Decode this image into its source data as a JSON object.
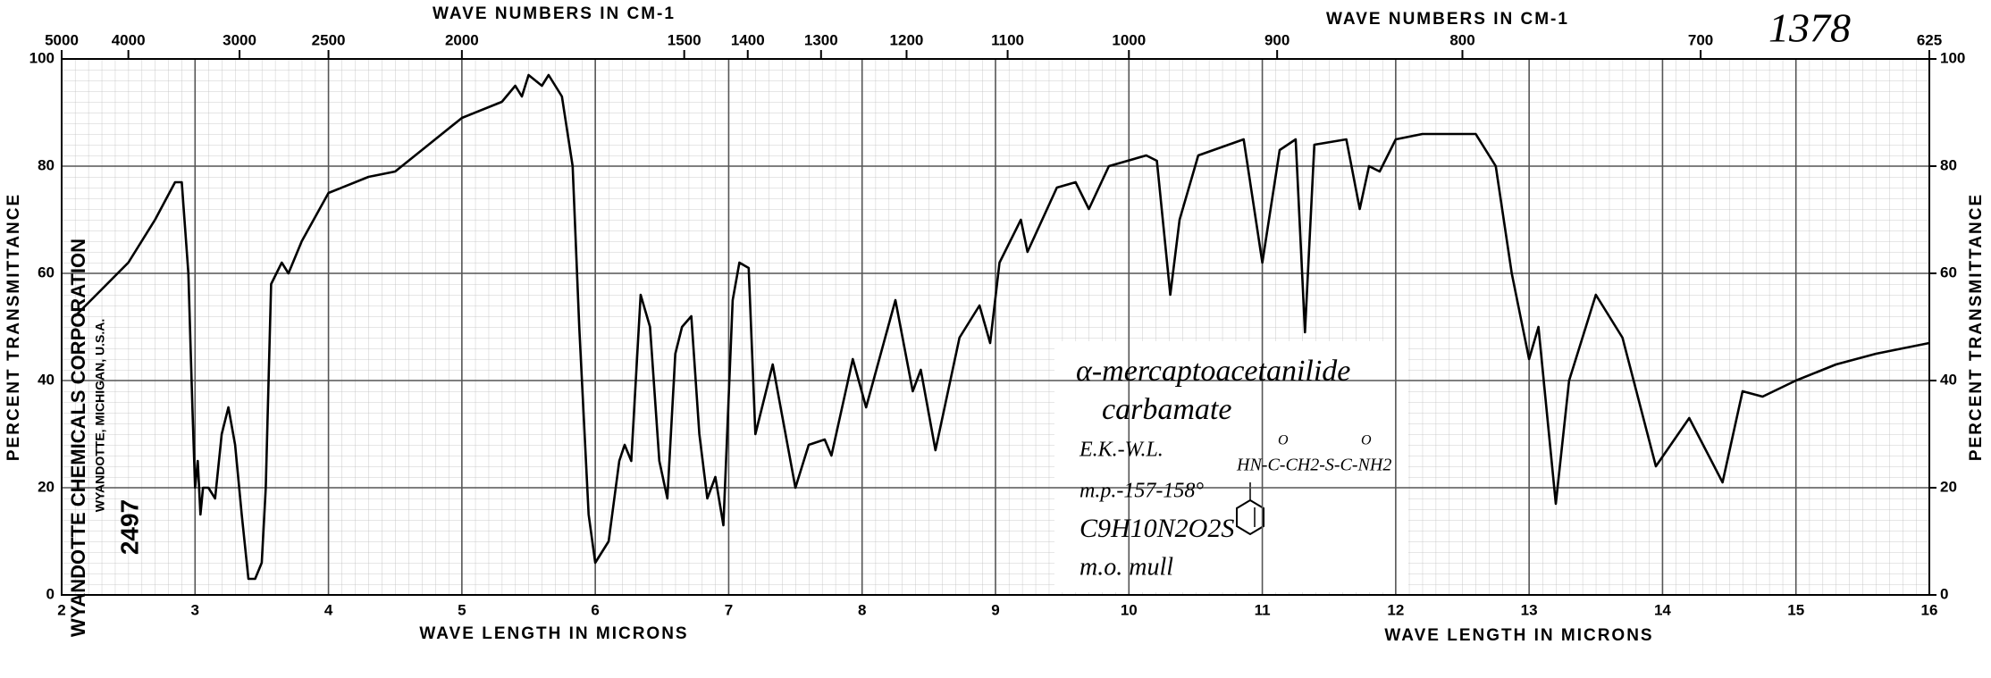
{
  "chart_data": {
    "type": "line",
    "x_axis_label": "WAVE LENGTH IN MICRONS",
    "x2_axis_label": "WAVE NUMBERS IN CM-1",
    "y_axis_label": "PERCENT TRANSMITTANCE",
    "spectrum_number": "1378",
    "source": [
      "WYANDOTTE CHEMICALS CORPORATION",
      "WYANDOTTE, MICHIGAN, U.S.A.",
      "2497"
    ],
    "annotations": [
      "α-mercaptoacetanilide",
      "carbamate",
      "E.K.-W.L.",
      "m.p.-157-158°",
      "C9H10N2O2S",
      "m.o. mull",
      "HN-C-CH2-S-C-NH2",
      "O",
      "O"
    ],
    "xlim": [
      2,
      16
    ],
    "xticks": [
      2,
      3,
      4,
      5,
      6,
      7,
      8,
      9,
      10,
      11,
      12,
      13,
      14,
      15,
      16
    ],
    "x2ticks": [
      5000,
      4000,
      3000,
      2500,
      2000,
      1500,
      1400,
      1300,
      1200,
      1100,
      1000,
      900,
      800,
      700,
      625
    ],
    "ylim": [
      0,
      100
    ],
    "yticks": [
      0,
      20,
      40,
      60,
      80,
      100
    ],
    "y2lim": [
      0,
      100
    ],
    "y2ticks": [
      0,
      20,
      40,
      60,
      80,
      100
    ],
    "grid": true,
    "color": "#000000",
    "x": [
      2.1,
      2.3,
      2.5,
      2.7,
      2.85,
      2.9,
      2.95,
      2.98,
      3.0,
      3.02,
      3.04,
      3.06,
      3.1,
      3.15,
      3.2,
      3.25,
      3.3,
      3.35,
      3.4,
      3.45,
      3.5,
      3.53,
      3.57,
      3.65,
      3.7,
      3.8,
      4.0,
      4.3,
      4.5,
      4.7,
      5.0,
      5.3,
      5.4,
      5.45,
      5.5,
      5.6,
      5.65,
      5.75,
      5.83,
      5.88,
      5.95,
      6.0,
      6.1,
      6.18,
      6.22,
      6.27,
      6.34,
      6.41,
      6.48,
      6.54,
      6.6,
      6.65,
      6.72,
      6.78,
      6.84,
      6.9,
      6.96,
      7.03,
      7.08,
      7.15,
      7.2,
      7.33,
      7.5,
      7.6,
      7.72,
      7.77,
      7.93,
      8.03,
      8.25,
      8.38,
      8.44,
      8.55,
      8.73,
      8.88,
      8.96,
      9.03,
      9.19,
      9.24,
      9.46,
      9.6,
      9.7,
      9.85,
      10.13,
      10.21,
      10.31,
      10.38,
      10.52,
      10.86,
      11.0,
      11.13,
      11.25,
      11.32,
      11.39,
      11.63,
      11.73,
      11.8,
      11.88,
      12.0,
      12.2,
      12.6,
      12.75,
      12.87,
      13.0,
      13.07,
      13.2,
      13.3,
      13.5,
      13.7,
      13.95,
      14.2,
      14.45,
      14.6,
      14.75,
      15.0,
      15.3,
      15.6,
      15.8,
      16.0
    ],
    "values": [
      52,
      57,
      62,
      70,
      77,
      77,
      60,
      35,
      20,
      25,
      15,
      20,
      20,
      18,
      30,
      35,
      28,
      15,
      3,
      3,
      6,
      20,
      58,
      62,
      60,
      66,
      75,
      78,
      79,
      83,
      89,
      92,
      95,
      93,
      97,
      95,
      97,
      93,
      80,
      50,
      15,
      6,
      10,
      25,
      28,
      25,
      56,
      50,
      25,
      18,
      45,
      50,
      52,
      30,
      18,
      22,
      13,
      55,
      62,
      61,
      30,
      43,
      20,
      28,
      29,
      26,
      44,
      35,
      55,
      38,
      42,
      27,
      48,
      54,
      47,
      62,
      70,
      64,
      76,
      77,
      72,
      80,
      82,
      81,
      56,
      70,
      82,
      85,
      62,
      83,
      85,
      49,
      84,
      85,
      72,
      80,
      79,
      85,
      86,
      86,
      80,
      60,
      44,
      50,
      17,
      40,
      56,
      48,
      24,
      33,
      21,
      38,
      37,
      40,
      43,
      45,
      46,
      47
    ]
  }
}
